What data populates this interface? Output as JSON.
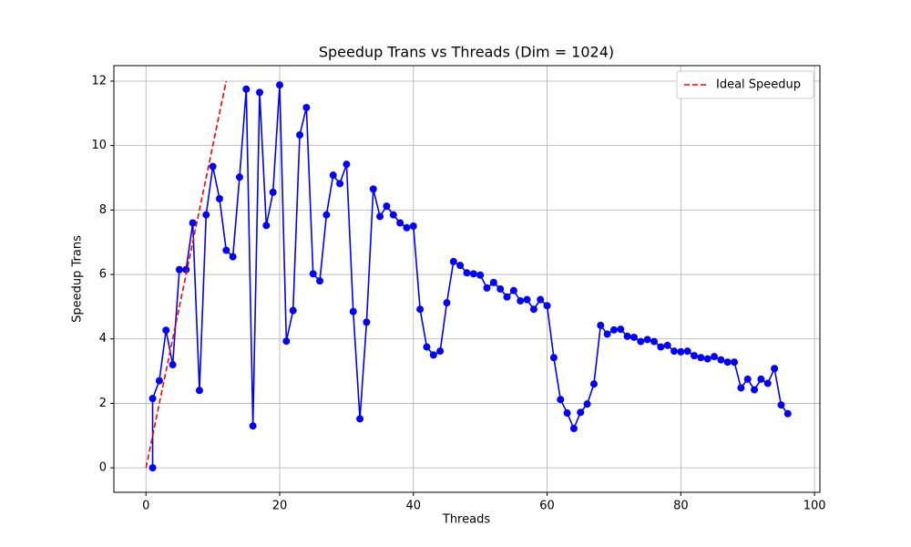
{
  "chart_data": {
    "type": "line",
    "title": "Speedup Trans vs Threads (Dim = 1024)",
    "xlabel": "Threads",
    "ylabel": "Speedup Trans",
    "xlim": [
      -4.8,
      100.8
    ],
    "xticks": [
      0,
      20,
      40,
      60,
      80,
      100
    ],
    "ylim": [
      -0.76,
      12.48
    ],
    "yticks": [
      0,
      2,
      4,
      6,
      8,
      10,
      12
    ],
    "grid": true,
    "legend": "upper right",
    "series": [
      {
        "color": "#0000ff",
        "marker": "circle",
        "dash": "solid",
        "x": [
          1,
          1,
          2,
          3,
          4,
          5,
          6,
          7,
          8,
          9,
          10,
          11,
          12,
          13,
          14,
          15,
          16,
          17,
          18,
          19,
          20,
          21,
          22,
          23,
          24,
          25,
          26,
          27,
          28,
          29,
          30,
          31,
          32,
          33,
          34,
          35,
          36,
          37,
          38,
          39,
          40,
          41,
          42,
          43,
          44,
          45,
          46,
          47,
          48,
          49,
          50,
          51,
          52,
          53,
          54,
          55,
          56,
          57,
          58,
          59,
          60,
          61,
          62,
          63,
          64,
          65,
          66,
          67,
          68,
          69,
          70,
          71,
          72,
          73,
          74,
          75,
          76,
          77,
          78,
          79,
          80,
          81,
          82,
          83,
          84,
          85,
          86,
          87,
          88,
          89,
          90,
          91,
          92,
          93,
          94,
          95,
          96
        ],
        "values": [
          0,
          2.15,
          2.7,
          4.27,
          3.2,
          6.15,
          6.15,
          7.6,
          2.4,
          7.85,
          9.35,
          8.35,
          6.75,
          6.55,
          9.02,
          11.75,
          1.3,
          11.65,
          7.52,
          8.55,
          11.88,
          3.93,
          4.88,
          10.33,
          11.18,
          6.02,
          5.8,
          7.85,
          9.08,
          8.82,
          9.42,
          4.85,
          1.52,
          4.52,
          8.65,
          7.8,
          8.12,
          7.85,
          7.6,
          7.45,
          7.5,
          4.92,
          3.75,
          3.5,
          3.62,
          5.12,
          6.4,
          6.28,
          6.05,
          6.02,
          5.98,
          5.58,
          5.75,
          5.55,
          5.3,
          5.5,
          5.18,
          5.22,
          4.92,
          5.22,
          5.03,
          3.42,
          2.12,
          1.7,
          1.22,
          1.72,
          1.98,
          2.6,
          4.42,
          4.15,
          4.28,
          4.3,
          4.08,
          4.05,
          3.92,
          3.98,
          3.92,
          3.75,
          3.8,
          3.62,
          3.6,
          3.62,
          3.48,
          3.42,
          3.38,
          3.45,
          3.35,
          3.28,
          3.28,
          2.48,
          2.75,
          2.42,
          2.75,
          2.62,
          3.08,
          1.95,
          1.68
        ]
      },
      {
        "name": "Ideal Speedup",
        "color": "#ff0000",
        "marker": "none",
        "dash": "dashed",
        "x": [
          0,
          12
        ],
        "values": [
          0,
          12
        ]
      }
    ]
  }
}
